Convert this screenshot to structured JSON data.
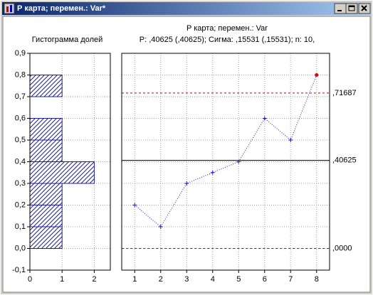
{
  "window": {
    "title": "P карта; перемен.:  Var*"
  },
  "chart_data": [
    {
      "type": "histogram",
      "title": "Гистограмма долей",
      "orientation": "horizontal",
      "bins": [
        0.0,
        0.1,
        0.2,
        0.3,
        0.4,
        0.5,
        0.6,
        0.7,
        0.8
      ],
      "counts": [
        1,
        1,
        1,
        2,
        1,
        1,
        0,
        1
      ],
      "color": "#1c1ca8",
      "xlim": [
        0,
        2.5
      ],
      "xticks": [
        0,
        1,
        2
      ],
      "ylim": [
        -0.1,
        0.9
      ],
      "yticks": [
        {
          "value": -0.1,
          "label": "-0,1"
        },
        {
          "value": 0,
          "label": "0,0"
        },
        {
          "value": 0.1,
          "label": "0,1"
        },
        {
          "value": 0.2,
          "label": "0,2"
        },
        {
          "value": 0.3,
          "label": "0,3"
        },
        {
          "value": 0.4,
          "label": "0,4"
        },
        {
          "value": 0.5,
          "label": "0,5"
        },
        {
          "value": 0.6,
          "label": "0,6"
        },
        {
          "value": 0.7,
          "label": "0,7"
        },
        {
          "value": 0.8,
          "label": "0,8"
        },
        {
          "value": 0.9,
          "label": "0,9"
        }
      ],
      "grid": true
    },
    {
      "type": "control",
      "title": "P карта; перемен.:  Var",
      "subtitle": "P:  ,40625 (,40625); Сигма: ,15531 (,15531); n: 10,",
      "x": [
        1,
        2,
        3,
        4,
        5,
        6,
        7,
        8
      ],
      "values": [
        0.2,
        0.1,
        0.3,
        0.35,
        0.4,
        0.6,
        0.5,
        0.8
      ],
      "color": "#1c1cc8",
      "out_of_control_color": "#e00000",
      "xlim": [
        0.5,
        8.5
      ],
      "xticks": [
        1,
        2,
        3,
        4,
        5,
        6,
        7,
        8
      ],
      "ylim": [
        -0.1,
        0.9
      ],
      "yticks": [
        -0.1,
        0,
        0.1,
        0.2,
        0.3,
        0.4,
        0.5,
        0.6,
        0.7,
        0.8,
        0.9
      ],
      "grid": true,
      "control_lines": [
        {
          "value": 0.71687,
          "label": ",71687",
          "color": "#d00000",
          "style": "dashed"
        },
        {
          "value": 0.40625,
          "label": ",40625",
          "color": "#000000",
          "style": "solid"
        },
        {
          "value": 0,
          "label": ",0000",
          "color": "#d00000",
          "style": "dashed"
        }
      ]
    }
  ]
}
